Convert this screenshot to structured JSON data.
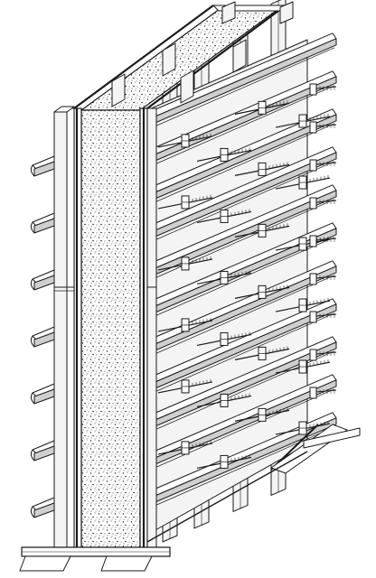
{
  "figure": {
    "subject": "wall-formwork-isometric",
    "colors": {
      "line": "#1a1a1a",
      "paper": "#ffffff",
      "concrete_stipple": "#222222",
      "panel_shade": "#cfcfcf",
      "timber_fill": "#f4f4f4"
    },
    "components": {
      "concrete_wall": "concrete-wall-core",
      "form_panels": "plywood-form-panel",
      "studs": "vertical-timber-stud",
      "wales": "horizontal-steel-wale",
      "ties": "form-tie-rod",
      "sills": "base-sill-plank",
      "brace": "diagonal-kicker-brace"
    },
    "counts": {
      "front_wales": 11,
      "left_wales": 7,
      "front_studs": 4,
      "tie_rows": 12
    }
  }
}
